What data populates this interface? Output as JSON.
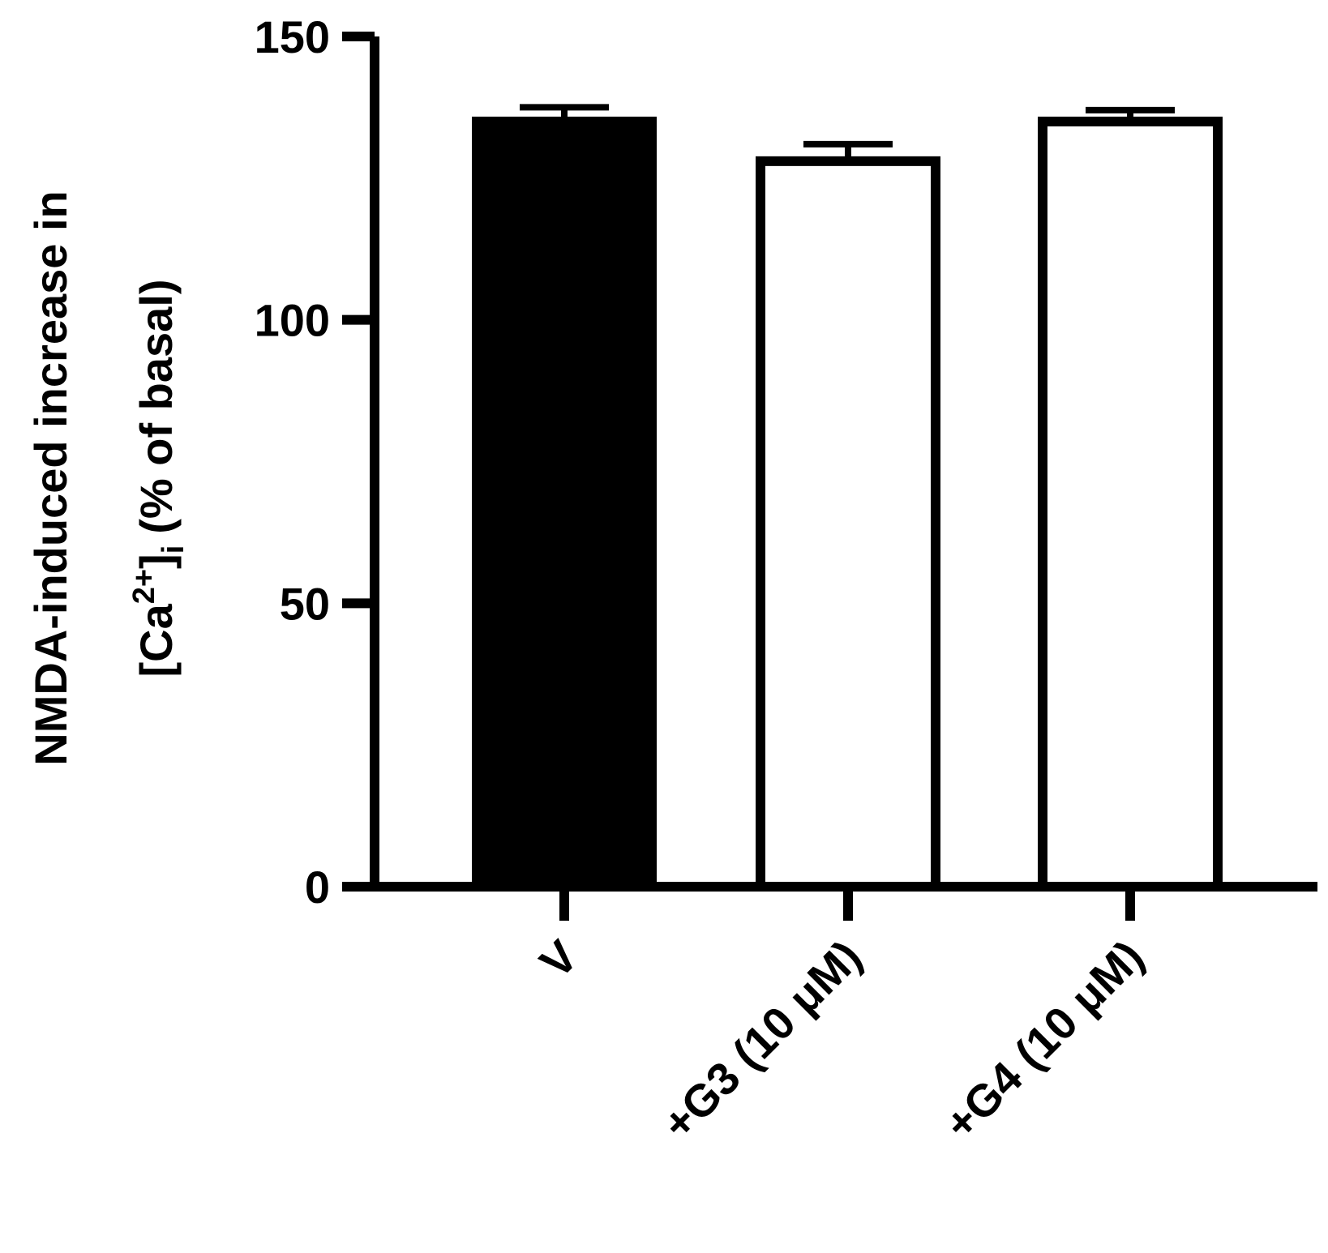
{
  "chart_data": {
    "type": "bar",
    "ylabel": {
      "line1": "NMDA-induced increase in",
      "line2": [
        "[Ca",
        "2+",
        "]",
        "i",
        "(% of basal)"
      ]
    },
    "categories": [
      "V",
      "+G3 (10 μM)",
      "+G4 (10 μM)"
    ],
    "values": [
      135,
      128,
      135
    ],
    "errors": [
      2.5,
      3,
      2
    ],
    "colors": [
      "#000000",
      "#ffffff",
      "#ffffff"
    ],
    "edge_color": "#000000",
    "ylim": [
      0,
      150
    ],
    "yticks": [
      0,
      50,
      100,
      150
    ]
  }
}
